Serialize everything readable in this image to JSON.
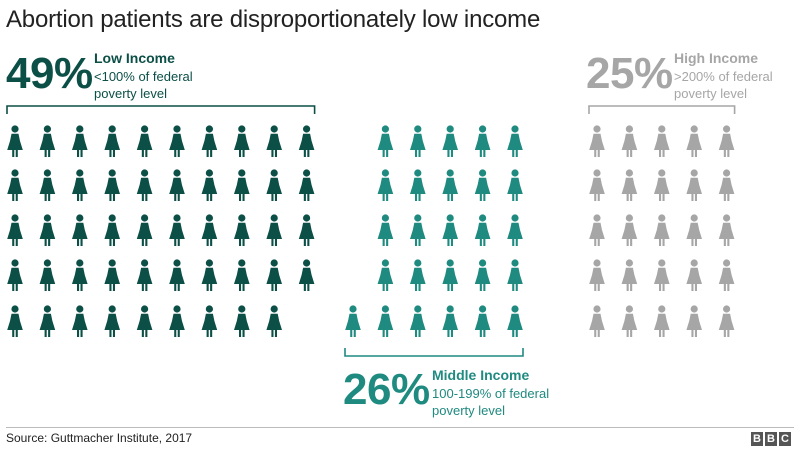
{
  "title": "Abortion patients are disproportionately low income",
  "source": "Source: Guttmacher Institute, 2017",
  "logo": {
    "letters": [
      "B",
      "B",
      "C"
    ]
  },
  "colors": {
    "low": "#0b4f47",
    "middle": "#1f8a80",
    "high": "#a6a6a6"
  },
  "icon": "woman-icon",
  "chart_data": {
    "type": "pictogram",
    "unit": "each figure represents 1% of patients",
    "groups": [
      {
        "key": "low",
        "percent_label": "49%",
        "value": 49,
        "label": "Low Income",
        "description": "<100% of federal poverty level"
      },
      {
        "key": "middle",
        "percent_label": "26%",
        "value": 26,
        "label": "Middle Income",
        "description": "100-199% of federal poverty level"
      },
      {
        "key": "high",
        "percent_label": "25%",
        "value": 25,
        "label": "High Income",
        "description": ">200% of federal poverty level"
      }
    ]
  }
}
